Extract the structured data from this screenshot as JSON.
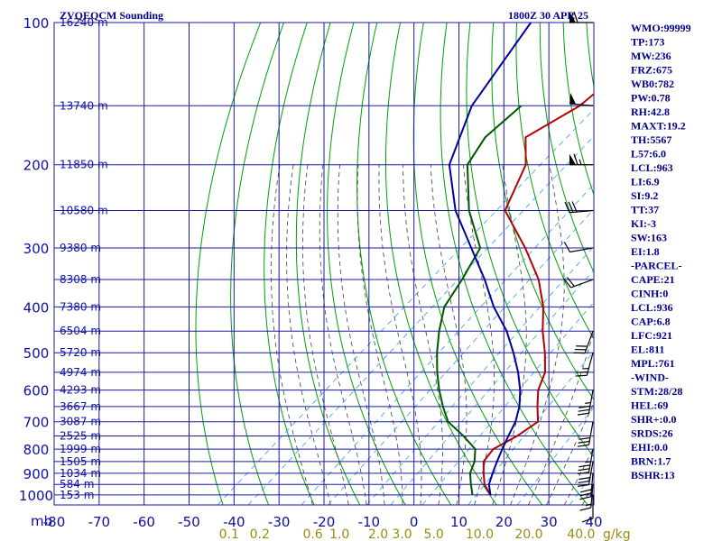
{
  "chart_data": {
    "type": "line",
    "title": "ZVQEQCM Sounding",
    "valid_time": "1800Z 30 APR 25",
    "pressure_unit_label": "mb",
    "mixing_ratio_unit_label": "g/kg",
    "height_unit": "m",
    "pressure_levels": [
      100,
      200,
      300,
      400,
      500,
      600,
      700,
      800,
      900,
      1000
    ],
    "pressure_range": [
      100,
      1050
    ],
    "temperature_ticks": [
      -80,
      -70,
      -60,
      -50,
      -40,
      -30,
      -20,
      -10,
      0,
      10,
      20,
      30,
      40
    ],
    "temperature_range": [
      -80,
      40
    ],
    "mixing_ratio_ticks": [
      {
        "label": "0.1",
        "value": 0.1
      },
      {
        "label": "0.2",
        "value": 0.2
      },
      {
        "label": "0.6",
        "value": 0.6
      },
      {
        "label": "1.0",
        "value": 1.0
      },
      {
        "label": "2.0",
        "value": 2.0
      },
      {
        "label": "3.0",
        "value": 3.0
      },
      {
        "label": "5.0",
        "value": 5.0
      },
      {
        "label": "10.0",
        "value": 10.0
      },
      {
        "label": "20.0",
        "value": 20.0
      },
      {
        "label": "40.0",
        "value": 40.0
      }
    ],
    "height_labels": [
      {
        "p": 100,
        "label": "16240 m"
      },
      {
        "p": 150,
        "label": "13740 m"
      },
      {
        "p": 200,
        "label": "11850 m"
      },
      {
        "p": 250,
        "label": "10580 m"
      },
      {
        "p": 300,
        "label": "9380 m"
      },
      {
        "p": 350,
        "label": "8308 m"
      },
      {
        "p": 400,
        "label": "7380 m"
      },
      {
        "p": 450,
        "label": "6504 m"
      },
      {
        "p": 500,
        "label": "5720 m"
      },
      {
        "p": 550,
        "label": "4974 m"
      },
      {
        "p": 600,
        "label": "4293 m"
      },
      {
        "p": 650,
        "label": "3667 m"
      },
      {
        "p": 700,
        "label": "3087 m"
      },
      {
        "p": 750,
        "label": "2525 m"
      },
      {
        "p": 800,
        "label": "1999 m"
      },
      {
        "p": 850,
        "label": "1505 m"
      },
      {
        "p": 900,
        "label": "1034 m"
      },
      {
        "p": 950,
        "label": "584 m"
      },
      {
        "p": 1000,
        "label": "153 m"
      }
    ],
    "skew_deg_per_log10p": 120,
    "series": [
      {
        "key": "temperature",
        "color": "#b40000",
        "points": [
          [
            100,
            -61
          ],
          [
            150,
            -62
          ],
          [
            175,
            -66
          ],
          [
            200,
            -59
          ],
          [
            250,
            -52
          ],
          [
            300,
            -38
          ],
          [
            350,
            -27
          ],
          [
            400,
            -19
          ],
          [
            450,
            -13
          ],
          [
            500,
            -7
          ],
          [
            550,
            -2
          ],
          [
            600,
            1
          ],
          [
            650,
            5
          ],
          [
            700,
            9
          ],
          [
            750,
            8
          ],
          [
            800,
            6
          ],
          [
            850,
            7
          ],
          [
            900,
            10
          ],
          [
            950,
            13
          ],
          [
            1000,
            17
          ]
        ]
      },
      {
        "key": "dewpoint",
        "color": "#005500",
        "points": [
          [
            150,
            -75
          ],
          [
            175,
            -75
          ],
          [
            200,
            -72
          ],
          [
            250,
            -60
          ],
          [
            300,
            -48
          ],
          [
            350,
            -44
          ],
          [
            400,
            -41
          ],
          [
            450,
            -36
          ],
          [
            500,
            -31
          ],
          [
            550,
            -26
          ],
          [
            600,
            -21
          ],
          [
            650,
            -16
          ],
          [
            700,
            -11
          ],
          [
            750,
            -4
          ],
          [
            800,
            2
          ],
          [
            850,
            5
          ],
          [
            900,
            7
          ],
          [
            950,
            10
          ],
          [
            1000,
            13
          ]
        ]
      },
      {
        "key": "parcel",
        "color": "#0000a0",
        "points": [
          [
            100,
            -94
          ],
          [
            150,
            -86
          ],
          [
            200,
            -76
          ],
          [
            250,
            -63
          ],
          [
            300,
            -50
          ],
          [
            350,
            -39
          ],
          [
            400,
            -30
          ],
          [
            450,
            -21
          ],
          [
            500,
            -14
          ],
          [
            550,
            -8
          ],
          [
            600,
            -3
          ],
          [
            650,
            1
          ],
          [
            700,
            4
          ],
          [
            750,
            6
          ],
          [
            800,
            8
          ],
          [
            850,
            10
          ],
          [
            900,
            12
          ],
          [
            950,
            14
          ],
          [
            1000,
            17
          ]
        ]
      }
    ],
    "wind_barbs": [
      {
        "p": 100,
        "dir": 270,
        "spd": 60
      },
      {
        "p": 150,
        "dir": 275,
        "spd": 50
      },
      {
        "p": 200,
        "dir": 270,
        "spd": 65
      },
      {
        "p": 250,
        "dir": 265,
        "spd": 30
      },
      {
        "p": 300,
        "dir": 260,
        "spd": 10
      },
      {
        "p": 350,
        "dir": 250,
        "spd": 20
      },
      {
        "p": 450,
        "dir": 200,
        "spd": 30
      },
      {
        "p": 500,
        "dir": 195,
        "spd": 25
      },
      {
        "p": 600,
        "dir": 190,
        "spd": 35
      },
      {
        "p": 700,
        "dir": 190,
        "spd": 30
      },
      {
        "p": 800,
        "dir": 190,
        "spd": 35
      },
      {
        "p": 850,
        "dir": 190,
        "spd": 30
      },
      {
        "p": 900,
        "dir": 185,
        "spd": 30
      },
      {
        "p": 950,
        "dir": 185,
        "spd": 15
      },
      {
        "p": 1000,
        "dir": 180,
        "spd": 10
      }
    ],
    "indices": [
      "WMO:99999",
      "TP:173",
      "MW:236",
      "FRZ:675",
      "WB0:782",
      "PW:0.78",
      "RH:42.8",
      "MAXT:19.2",
      "TH:5567",
      "L57:6.0",
      "LCL:963",
      "LI:6.9",
      "SI:9.2",
      "TT:37",
      "KI:-3",
      "SW:163",
      "EI:1.8",
      "-PARCEL-",
      "CAPE:21",
      "CINH:0",
      "LCL:936",
      "CAP:6.8",
      "LFC:921",
      "EL:811",
      "MPL:761",
      "-WIND-",
      "STM:28/28",
      "HEL:69",
      "SHR+:0.0",
      "SRDS:26",
      "EHI:0.0",
      "BRN:1.7",
      "BSHR:13"
    ],
    "colors": {
      "isobar": "#1a1aa0",
      "dry_adiabat": "#00a000",
      "moist_adiabat": "#404040",
      "mixing_ratio": "#3399ff",
      "wind_text": "#9b8a10",
      "text": "#00008b"
    }
  }
}
